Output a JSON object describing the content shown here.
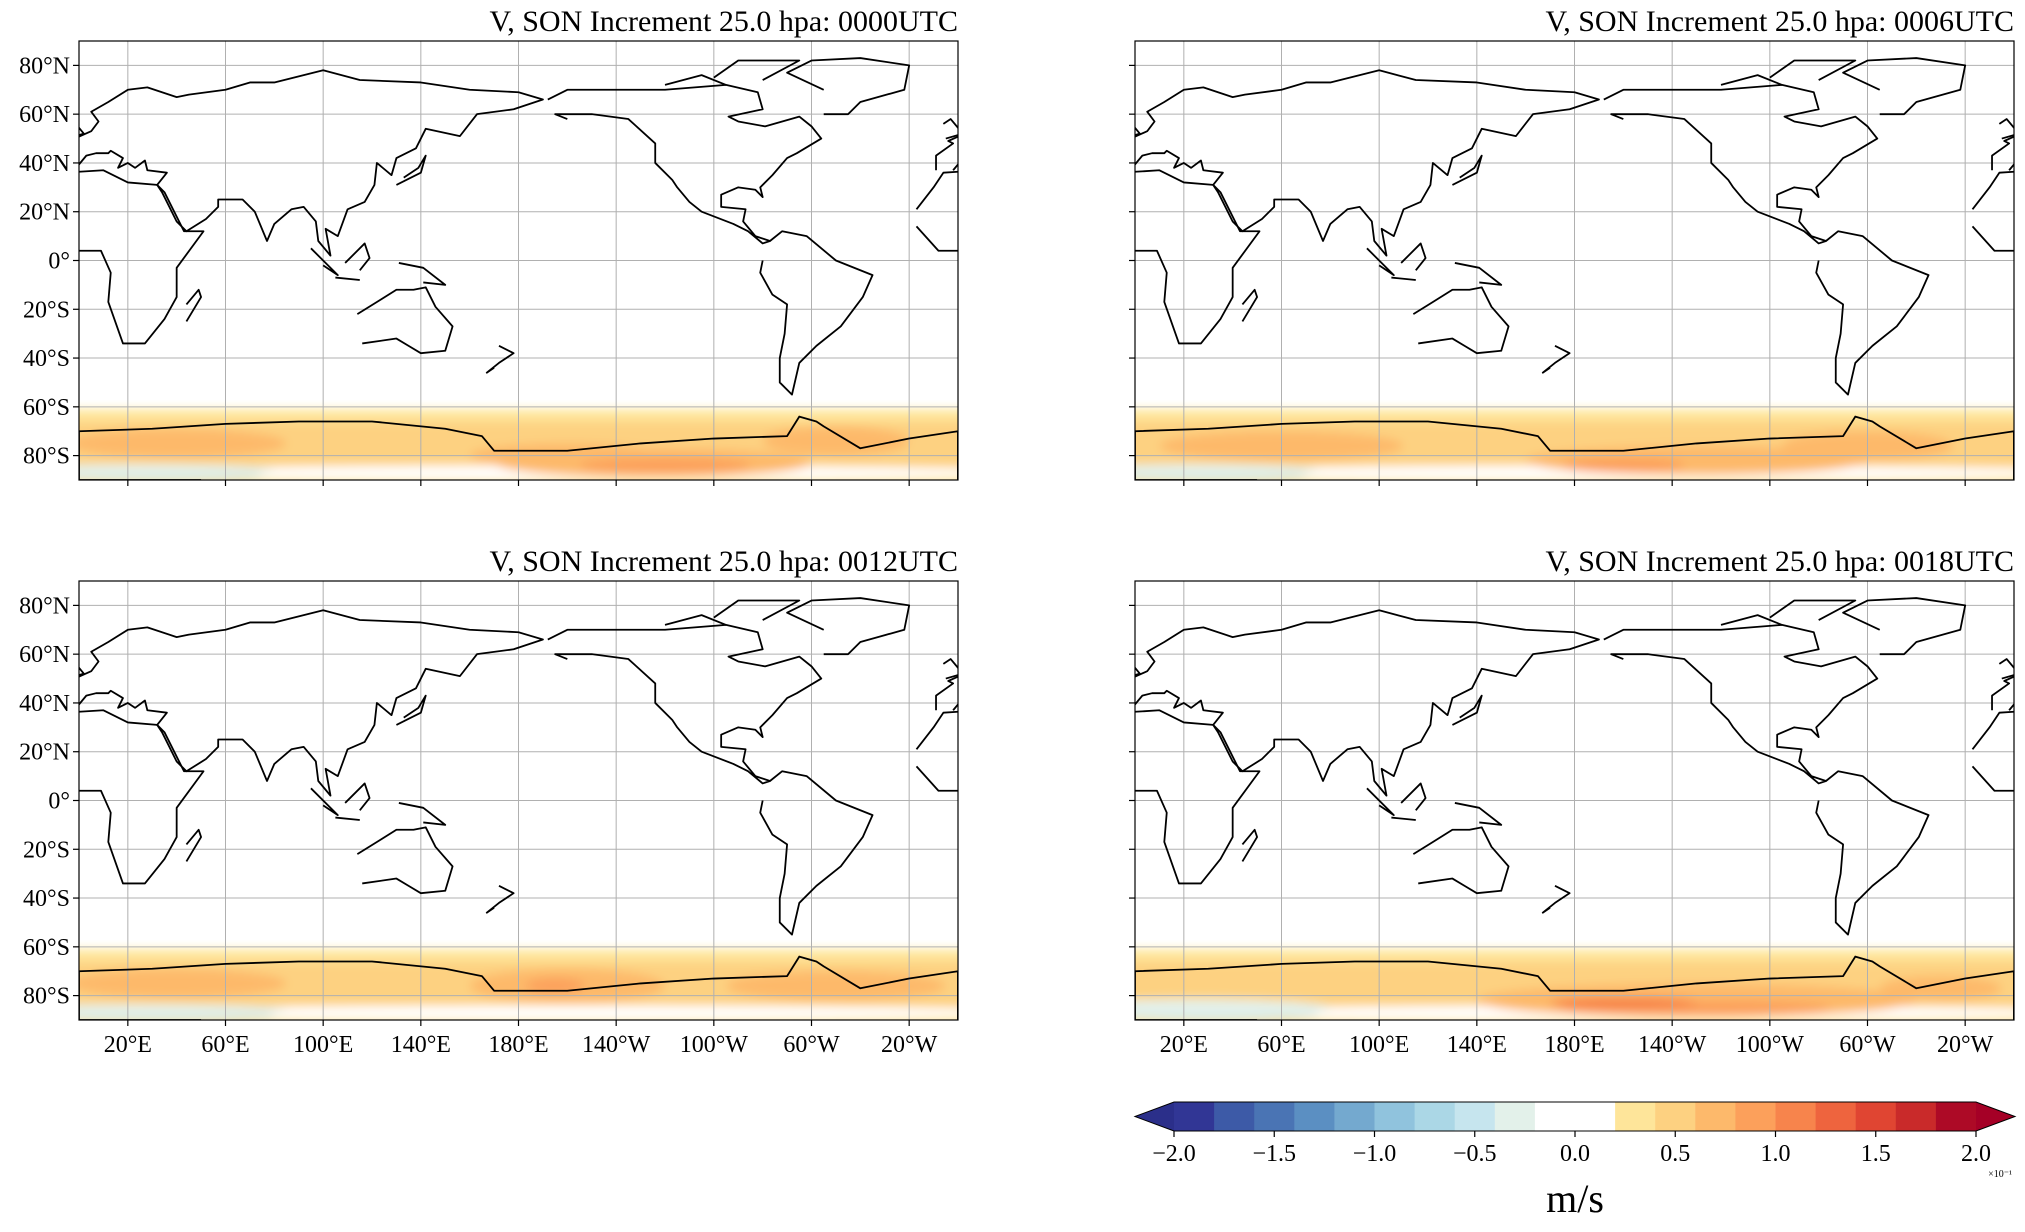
{
  "panels": [
    {
      "title": "V, SON Increment 25.0 hpa:  0000UTC"
    },
    {
      "title": "V, SON Increment 25.0 hpa:  0006UTC"
    },
    {
      "title": "V, SON Increment 25.0 hpa:  0012UTC"
    },
    {
      "title": "V, SON Increment 25.0 hpa:  0018UTC"
    }
  ],
  "lat_ticks": [
    {
      "value": 80,
      "label": "80°N"
    },
    {
      "value": 60,
      "label": "60°N"
    },
    {
      "value": 40,
      "label": "40°N"
    },
    {
      "value": 20,
      "label": "20°N"
    },
    {
      "value": 0,
      "label": "0°"
    },
    {
      "value": -20,
      "label": "20°S"
    },
    {
      "value": -40,
      "label": "40°S"
    },
    {
      "value": -60,
      "label": "60°S"
    },
    {
      "value": -80,
      "label": "80°S"
    }
  ],
  "lon_ticks": [
    {
      "value": 20,
      "label": "20°E"
    },
    {
      "value": 60,
      "label": "60°E"
    },
    {
      "value": 100,
      "label": "100°E"
    },
    {
      "value": 140,
      "label": "140°E"
    },
    {
      "value": 180,
      "label": "180°E"
    },
    {
      "value": -140,
      "label": "140°W"
    },
    {
      "value": -100,
      "label": "100°W"
    },
    {
      "value": -60,
      "label": "60°W"
    },
    {
      "value": -20,
      "label": "20°W"
    }
  ],
  "colorbar": {
    "range": [
      -2,
      2
    ],
    "colors": [
      "#313695",
      "#3d5aa7",
      "#4a74b4",
      "#5b8fc2",
      "#74a9cf",
      "#90c3dd",
      "#abd7e6",
      "#c6e5ee",
      "#e3f1ea",
      "#ffffff",
      "#ffffff",
      "#fee59a",
      "#fdd181",
      "#fdb96b",
      "#fca05b",
      "#f7844c",
      "#ee643e",
      "#e04532",
      "#c92a2a",
      "#ad0a26"
    ],
    "under": "#2b2f8a",
    "over": "#a50026",
    "ticks": [
      {
        "value": -2,
        "label": "−2.0"
      },
      {
        "value": -1.5,
        "label": "−1.5"
      },
      {
        "value": -1,
        "label": "−1.0"
      },
      {
        "value": -0.5,
        "label": "−0.5"
      },
      {
        "value": 0,
        "label": "0.0"
      },
      {
        "value": 0.5,
        "label": "0.5"
      },
      {
        "value": 1,
        "label": "1.0"
      },
      {
        "value": 1.5,
        "label": "1.5"
      },
      {
        "value": 2,
        "label": "2.0"
      }
    ],
    "label": "m/s",
    "offset": "×10⁻¹"
  }
}
